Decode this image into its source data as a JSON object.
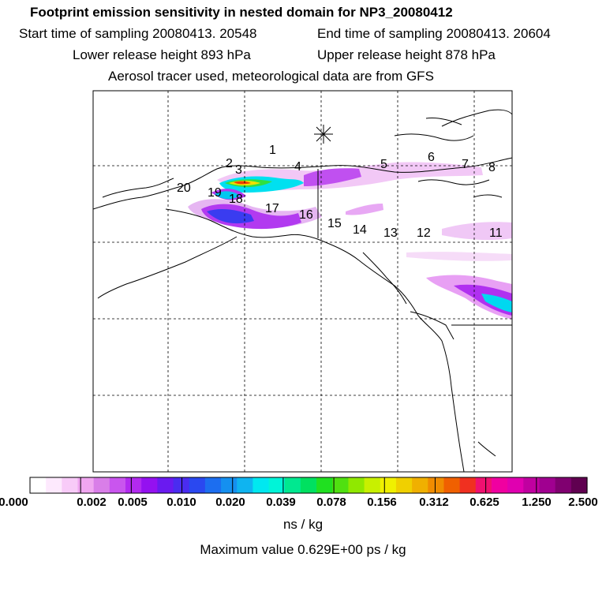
{
  "header": {
    "title": "Footprint emission sensitivity in nested domain for NP3_20080412",
    "start": "Start time of sampling 20080413. 20548",
    "end": "End time of sampling 20080413. 20604",
    "lower": "Lower release height  893 hPa",
    "upper": "Upper release height  878 hPa",
    "tracer": "Aerosol tracer used, meteorological data are from GFS"
  },
  "map": {
    "point_labels": [
      "1",
      "2",
      "3",
      "4",
      "5",
      "6",
      "7",
      "8",
      "11",
      "12",
      "13",
      "14",
      "15",
      "16",
      "17",
      "18",
      "19",
      "20"
    ],
    "marker": "asterisk-release-point"
  },
  "colorbar": {
    "colors": [
      "#ffffff",
      "#fde9fd",
      "#f8cbf8",
      "#f0a6f0",
      "#d97ee8",
      "#c955ee",
      "#b22af0",
      "#9411f0",
      "#6a1af0",
      "#4a2cf0",
      "#2a48f0",
      "#1c6ef0",
      "#1590f0",
      "#0fb4f0",
      "#00e8f0",
      "#00f4d8",
      "#00e890",
      "#00e060",
      "#20e020",
      "#50e010",
      "#90e800",
      "#c8f000",
      "#f0f000",
      "#f0d000",
      "#f0b000",
      "#f08c00",
      "#f06000",
      "#f03020",
      "#f01070",
      "#f000a0",
      "#e000b0",
      "#c000a0",
      "#a00090",
      "#800070",
      "#600050"
    ],
    "tick_labels": [
      "0.000",
      "0.002",
      "0.005",
      "0.010",
      "0.020",
      "0.039",
      "0.078",
      "0.156",
      "0.312",
      "0.625",
      "1.250",
      "2.500"
    ],
    "units": "ns / kg",
    "maximum": "Maximum value  0.629E+00 ps / kg"
  }
}
